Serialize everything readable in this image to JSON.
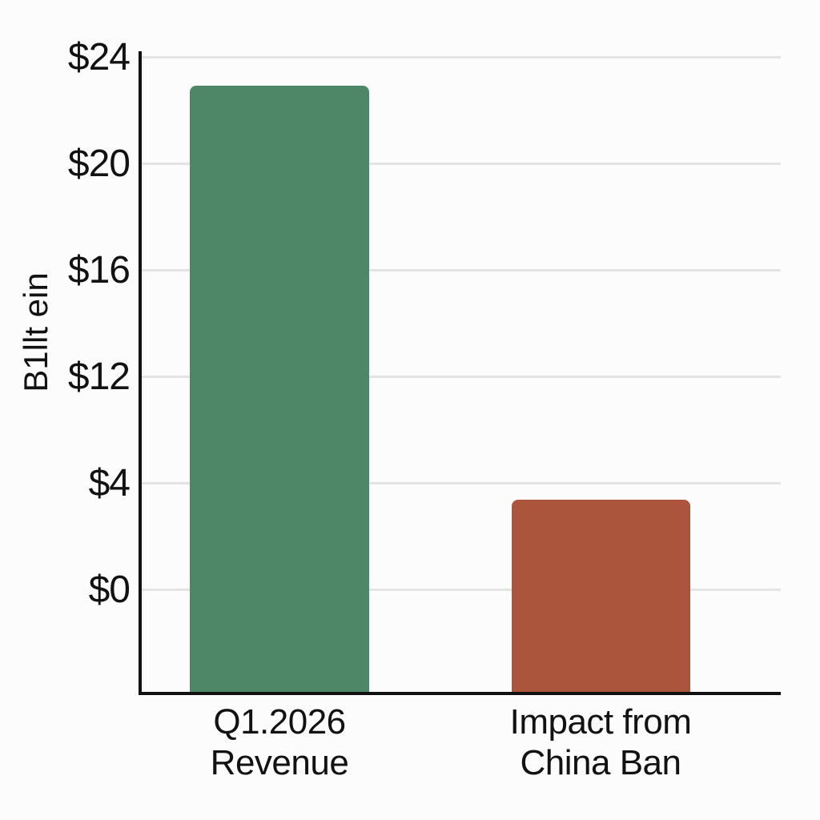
{
  "chart_data": {
    "type": "bar",
    "title": "",
    "ylabel": "B1llt ein",
    "yticks": [
      "$24",
      "$20",
      "$16",
      "$12",
      "$4",
      "$0"
    ],
    "categories": [
      "Q1.2026 Revenue",
      "Impact from China Ban"
    ],
    "category_lines": [
      [
        "Q1.2026",
        "Revenue"
      ],
      [
        "Impact from",
        "China Ban"
      ]
    ],
    "values": [
      22.9,
      3.4
    ],
    "series": [
      {
        "name": "Q1.2026 Revenue",
        "value": 22.9,
        "color": "#4d8767"
      },
      {
        "name": "Impact from China Ban",
        "value": 3.4,
        "color": "#ab563c"
      }
    ],
    "ylim": [
      -4,
      24
    ],
    "grid": true,
    "legend": false,
    "colors": {
      "bar_revenue": "#4d8767",
      "bar_impact": "#ab563c",
      "grid": "#e4e4e4",
      "axis": "#121212",
      "text": "#121212",
      "background": "#fcfcfc"
    }
  }
}
